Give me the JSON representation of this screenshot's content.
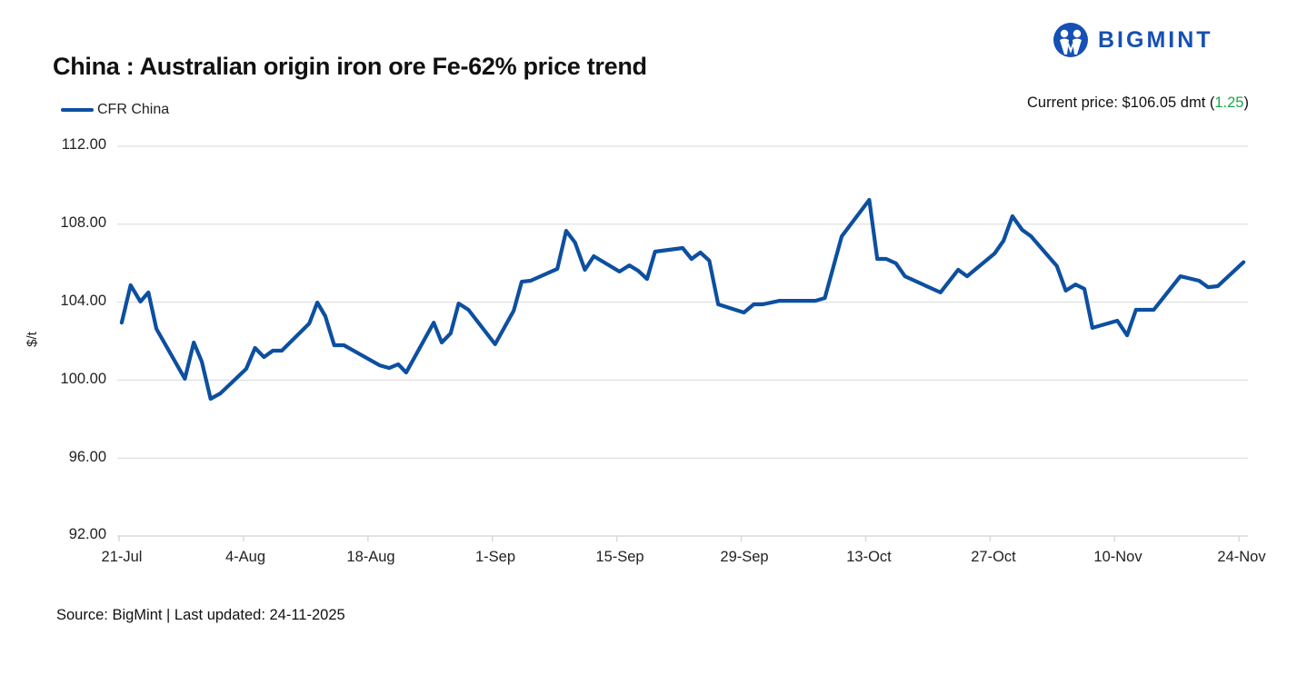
{
  "header": {
    "title": "China : Australian origin iron ore Fe-62% price trend",
    "brand": "BIGMINT",
    "brand_icon": "bigmint-logo-icon",
    "current_price_label": "Current price: $106.05 dmt (",
    "current_price_change": "1.25",
    "current_price_close": ")"
  },
  "footer": {
    "source": "Source: BigMint | Last updated: 24-11-2025"
  },
  "colors": {
    "series": "#0d4fa0",
    "brand": "#1550b4",
    "positive_change": "#1aa84a",
    "grid": "#d9d9d9"
  },
  "chart_data": {
    "type": "line",
    "title": "China : Australian origin iron ore Fe-62% price trend",
    "xlabel": "",
    "ylabel": "$/t",
    "ylim": [
      92,
      112
    ],
    "yticks": [
      "112.00",
      "108.00",
      "104.00",
      "100.00",
      "96.00",
      "92.00"
    ],
    "xticks": [
      "21-Jul",
      "4-Aug",
      "18-Aug",
      "1-Sep",
      "15-Sep",
      "29-Sep",
      "13-Oct",
      "27-Oct",
      "10-Nov",
      "24-Nov"
    ],
    "grid": true,
    "legend_position": "top-left",
    "series": [
      {
        "name": "CFR China",
        "x_day_offsets_from_21_Jul": [
          0.3,
          1.3,
          2.4,
          3.3,
          4.2,
          7.4,
          8.4,
          9.3,
          10.3,
          11.4,
          14.3,
          15.3,
          16.3,
          17.3,
          18.3,
          21.4,
          22.3,
          23.2,
          24.2,
          25.3,
          29.3,
          30.4,
          31.4,
          32.3,
          35.4,
          36.3,
          37.3,
          38.2,
          39.3,
          42.3,
          44.4,
          45.3,
          46.3,
          49.3,
          50.3,
          51.3,
          52.4,
          53.4,
          56.3,
          57.4,
          58.4,
          59.4,
          60.3,
          63.4,
          64.4,
          65.4,
          66.4,
          67.4,
          70.3,
          71.4,
          72.4,
          74.3,
          78.3,
          79.4,
          81.3,
          84.4,
          85.3,
          86.3,
          87.4,
          88.4,
          92.4,
          94.4,
          95.4,
          98.5,
          99.5,
          100.5,
          101.6,
          102.6,
          105.5,
          106.5,
          107.6,
          108.6,
          109.5,
          112.3,
          113.4,
          114.4,
          116.4,
          119.4,
          121.5,
          122.5,
          123.6,
          126.5
        ],
        "values": [
          102.95,
          104.87,
          104.03,
          104.5,
          102.63,
          100.07,
          101.93,
          100.95,
          99.04,
          99.32,
          100.58,
          101.65,
          101.18,
          101.51,
          101.51,
          102.91,
          103.98,
          103.28,
          101.79,
          101.79,
          100.76,
          100.62,
          100.81,
          100.39,
          102.95,
          101.93,
          102.4,
          103.93,
          103.61,
          101.84,
          103.56,
          105.05,
          105.1,
          105.71,
          107.66,
          107.06,
          105.66,
          106.36,
          105.57,
          105.89,
          105.61,
          105.19,
          106.59,
          106.78,
          106.22,
          106.55,
          106.13,
          103.89,
          103.47,
          103.89,
          103.89,
          104.07,
          104.07,
          104.21,
          107.38,
          109.25,
          106.22,
          106.22,
          105.99,
          105.33,
          104.5,
          105.66,
          105.33,
          106.5,
          107.15,
          108.41,
          107.71,
          107.38,
          105.85,
          104.59,
          104.91,
          104.68,
          102.68,
          103.05,
          102.3,
          103.61,
          103.61,
          105.33,
          105.1,
          104.77,
          104.82,
          106.05
        ]
      }
    ]
  }
}
